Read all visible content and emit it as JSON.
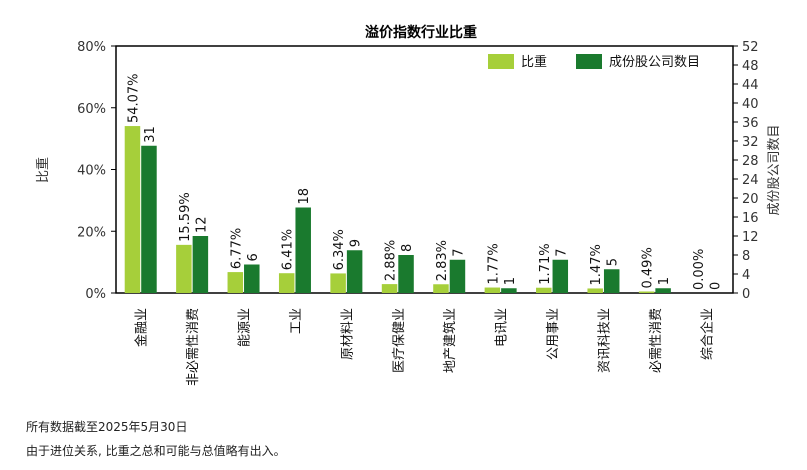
{
  "chart_data": {
    "type": "bar",
    "title": "溢价指数行业比重",
    "ylabel_left": "比重",
    "ylabel_right": "成份股公司数目",
    "categories": [
      "金融业",
      "非必需性消费",
      "能源业",
      "工业",
      "原材料业",
      "医疗保健业",
      "地产建筑业",
      "电讯业",
      "公用事业",
      "资讯科技业",
      "必需性消费",
      "综合企业"
    ],
    "series": [
      {
        "name": "比重",
        "color": "#a6cf3a",
        "values": [
          54.07,
          15.59,
          6.77,
          6.41,
          6.34,
          2.88,
          2.83,
          1.77,
          1.71,
          1.47,
          0.49,
          0.0
        ],
        "labels": [
          "54.07%",
          "15.59%",
          "6.77%",
          "6.41%",
          "6.34%",
          "2.88%",
          "2.83%",
          "1.77%",
          "1.71%",
          "1.47%",
          "0.49%",
          "0.00%"
        ]
      },
      {
        "name": "成份股公司数目",
        "color": "#1a7a2e",
        "values": [
          31,
          12,
          6,
          18,
          9,
          8,
          7,
          1,
          7,
          5,
          1,
          0
        ],
        "labels": [
          "31",
          "12",
          "6",
          "18",
          "9",
          "8",
          "7",
          "1",
          "7",
          "5",
          "1",
          "0"
        ]
      }
    ],
    "y_left": {
      "min": 0,
      "max": 80,
      "ticks": [
        "0%",
        "20%",
        "40%",
        "60%",
        "80%"
      ]
    },
    "y_right": {
      "min": 0,
      "max": 52,
      "ticks": [
        "0",
        "4",
        "8",
        "12",
        "16",
        "20",
        "24",
        "28",
        "32",
        "36",
        "40",
        "44",
        "48",
        "52"
      ]
    },
    "legend_position": "top-right",
    "grid": false
  },
  "notes": {
    "line1": "所有数据截至2025年5月30日",
    "line2": "由于进位关系, 比重之总和可能与总值略有出入。"
  }
}
